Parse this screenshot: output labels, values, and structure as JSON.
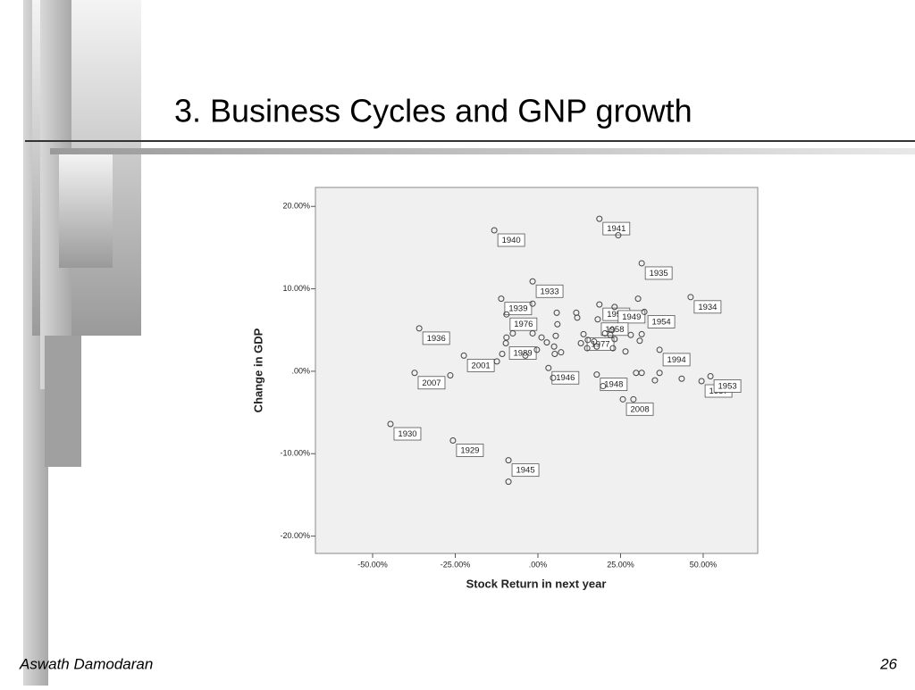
{
  "slide": {
    "title": "3. Business Cycles and GNP growth",
    "author": "Aswath Damodaran",
    "page_number": 26
  },
  "chart_data": {
    "type": "scatter",
    "x_label": "Stock Return in next year",
    "y_label": "Change in GDP",
    "xlim": [
      -67.3,
      66.5
    ],
    "ylim": [
      -22.1,
      22.3
    ],
    "xticks": [
      {
        "value": -50,
        "label": "-50.00%"
      },
      {
        "value": -25,
        "label": "-25.00%"
      },
      {
        "value": 0,
        "label": ".00%"
      },
      {
        "value": 25,
        "label": "25.00%"
      },
      {
        "value": 50,
        "label": "50.00%"
      }
    ],
    "yticks": [
      {
        "value": 20,
        "label": "20.00%"
      },
      {
        "value": 10,
        "label": "10.00%"
      },
      {
        "value": 0,
        "label": ".00%"
      },
      {
        "value": -10,
        "label": "-10.00%"
      },
      {
        "value": -20,
        "label": "-20.00%"
      }
    ],
    "color": "#444444",
    "x": [
      -13.2,
      18.6,
      -1.6,
      31.4,
      18.6,
      23.2,
      -11.1,
      46.2,
      -9.5,
      18.1,
      32.2,
      -35.9,
      13.8,
      -9.7,
      -22.4,
      3.2,
      36.8,
      -37.3,
      17.8,
      49.5,
      52.2,
      25.7,
      -44.6,
      -25.7,
      -8.9,
      -8.9,
      -26.5,
      24.3,
      -1.6,
      -7.6,
      -9.5,
      -10.8,
      -12.4,
      -3.8,
      -1.6,
      1.1,
      -0.3,
      4.9,
      5.1,
      4.6,
      7.0,
      5.4,
      5.9,
      5.7,
      11.6,
      11.9,
      13.0,
      14.9,
      17.0,
      17.8,
      20.3,
      21.9,
      22.4,
      23.2,
      22.7,
      26.5,
      28.1,
      29.7,
      31.4,
      30.8,
      31.4,
      30.3,
      36.8,
      35.4,
      43.5,
      19.7,
      28.9,
      15.1,
      2.7
    ],
    "values": [
      17.1,
      18.5,
      10.9,
      13.1,
      8.1,
      7.8,
      8.8,
      9.0,
      6.9,
      6.3,
      7.2,
      5.2,
      4.5,
      3.4,
      1.9,
      0.4,
      2.6,
      -0.2,
      -0.4,
      -1.2,
      -0.6,
      -3.4,
      -6.4,
      -8.4,
      -10.8,
      -13.4,
      -0.5,
      16.5,
      8.2,
      4.6,
      4.1,
      2.1,
      1.2,
      1.9,
      4.6,
      4.1,
      2.6,
      3.0,
      2.1,
      -0.8,
      2.3,
      4.3,
      5.7,
      7.1,
      7.1,
      6.5,
      3.4,
      2.8,
      3.6,
      3.0,
      4.6,
      4.4,
      5.0,
      3.9,
      2.8,
      2.4,
      4.4,
      -0.2,
      -0.2,
      3.7,
      4.5,
      8.8,
      -0.2,
      -1.1,
      -0.9,
      -1.8,
      -3.4,
      3.8,
      3.5
    ],
    "point_labels": [
      "1940",
      "1941",
      "1933",
      "1935",
      "1950",
      "1949",
      "1939",
      "1934",
      "1976",
      "1958",
      "1954",
      "1936",
      "1977",
      "1989",
      "2001",
      "1946",
      "1994",
      "2007",
      "1948",
      "1957",
      "1953",
      "2008",
      "1930",
      "1929",
      "1945",
      null,
      null,
      null,
      null,
      null,
      null,
      null,
      null,
      null,
      null,
      null,
      null,
      null,
      null,
      null,
      null,
      null,
      null,
      null,
      null,
      null,
      null,
      null,
      null,
      null,
      null,
      null,
      null,
      null,
      null,
      null,
      null,
      null,
      null,
      null,
      null,
      null,
      null,
      null,
      null,
      null,
      null,
      null,
      null
    ]
  }
}
